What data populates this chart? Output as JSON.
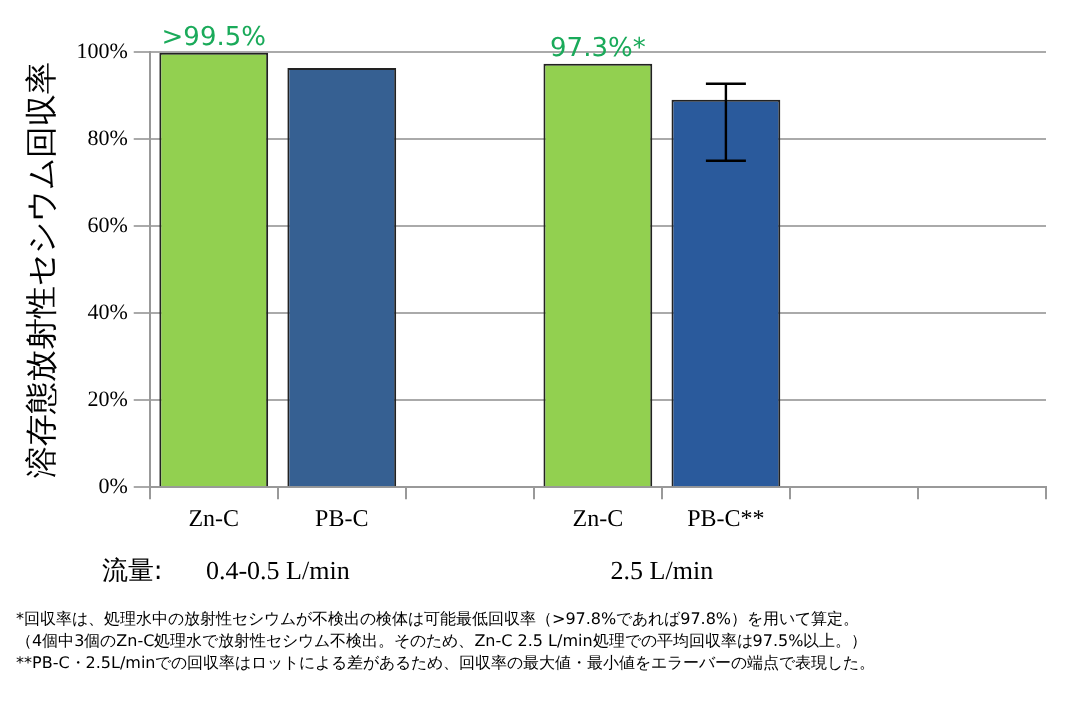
{
  "chart_data": {
    "type": "bar",
    "ylabel": "溶存態放射性セシウム回収率",
    "categories": [
      "Zn-C",
      "PB-C",
      null,
      "Zn-C",
      "PB-C**",
      null,
      null
    ],
    "values": [
      99.8,
      96.3,
      null,
      97.3,
      89,
      null,
      null
    ],
    "colors": [
      "#92d050",
      "#366092",
      "#ffffff",
      "#92d050",
      "#2a5a9c",
      "#ffffff",
      "#ffffff"
    ],
    "errors": [
      null,
      null,
      null,
      null,
      [
        75,
        92.7
      ],
      null,
      null
    ],
    "value_labels": [
      ">99.5%",
      null,
      null,
      "97.3%*",
      null,
      null,
      null
    ],
    "ylim": [
      0,
      100
    ],
    "yticks": [
      {
        "value": 0,
        "label": "0%"
      },
      {
        "value": 20,
        "label": "20%"
      },
      {
        "value": 40,
        "label": "40%"
      },
      {
        "value": 60,
        "label": "60%"
      },
      {
        "value": 80,
        "label": "80%"
      },
      {
        "value": 100,
        "label": "100%"
      }
    ],
    "grid": "y",
    "legend": false,
    "annotations": [
      "流量:",
      "0.4-0.5 L/min",
      "2.5 L/min",
      "*回収率は、処理水中の放射性セシウムが不検出の検体は可能最低回収率（>97.8%であれば97.8%）を用いて算定。",
      "（4個中3個のZn-C処理水で放射性セシウム不検出。そのため、Zn-C 2.5 L/min処理での平均回収率は97.5%以上。）",
      "**PB-C・2.5L/minでの回収率はロットによる差があるため、回収率の最大値・最小値をエラーバーの端点で表現した。"
    ]
  }
}
